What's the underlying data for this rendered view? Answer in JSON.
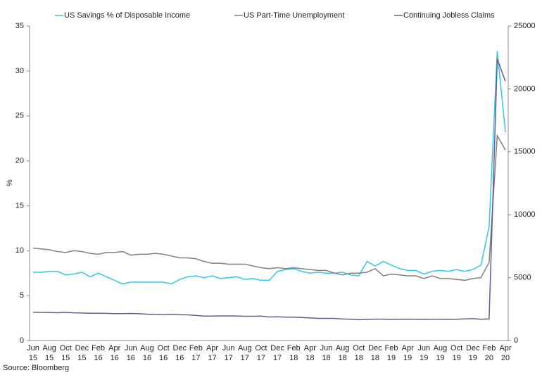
{
  "chart_data": {
    "type": "line",
    "source": "Source: Bloomberg",
    "ylabel": "%",
    "ylim": [
      0,
      35
    ],
    "yticks": [
      0,
      5,
      10,
      15,
      20,
      25,
      30,
      35
    ],
    "y2lim": [
      0,
      25000
    ],
    "y2ticks": [
      0,
      5000,
      10000,
      15000,
      20000,
      25000
    ],
    "categories": [
      "Jun 15",
      null,
      "Aug 15",
      null,
      "Oct 15",
      null,
      "Dec 15",
      null,
      "Feb 16",
      null,
      "Apr 16",
      null,
      "Jun 16",
      null,
      "Aug 16",
      null,
      "Oct 16",
      null,
      "Dec 16",
      null,
      "Feb 17",
      null,
      "Apr 17",
      null,
      "Jun 17",
      null,
      "Aug 17",
      null,
      "Oct 17",
      null,
      "Dec 17",
      null,
      "Feb 18",
      null,
      "Apr 18",
      null,
      "Jun 18",
      null,
      "Aug 18",
      null,
      "Oct 18",
      null,
      "Dec 18",
      null,
      "Feb 19",
      null,
      "Apr 19",
      null,
      "Jun 19",
      null,
      "Aug 19",
      null,
      "Oct 19",
      null,
      "Dec 19",
      null,
      "Feb 20",
      null,
      "Apr 20"
    ],
    "series": [
      {
        "name": "US Savings % of Disposable Income",
        "color": "#33c9e6",
        "values": [
          7.6,
          7.6,
          7.7,
          7.7,
          7.3,
          7.4,
          7.6,
          7.1,
          7.5,
          7.1,
          6.7,
          6.3,
          6.5,
          6.5,
          6.5,
          6.5,
          6.5,
          6.3,
          6.8,
          7.1,
          7.2,
          7.0,
          7.2,
          6.9,
          7.0,
          7.1,
          6.8,
          6.9,
          6.7,
          6.7,
          7.7,
          7.9,
          8.0,
          7.7,
          7.5,
          7.6,
          7.5,
          7.5,
          7.6,
          7.3,
          7.2,
          8.8,
          8.3,
          8.8,
          8.4,
          8.0,
          7.8,
          7.8,
          7.4,
          7.7,
          7.8,
          7.7,
          7.9,
          7.7,
          7.9,
          8.4,
          12.7,
          32.2,
          23.2
        ]
      },
      {
        "name": "US Part-Time Unemployment",
        "color": "#808080",
        "values": [
          10.3,
          10.2,
          10.1,
          9.9,
          9.8,
          10.0,
          9.9,
          9.7,
          9.6,
          9.8,
          9.8,
          9.9,
          9.5,
          9.6,
          9.6,
          9.7,
          9.6,
          9.4,
          9.2,
          9.2,
          9.1,
          8.8,
          8.6,
          8.6,
          8.5,
          8.5,
          8.5,
          8.3,
          8.1,
          8.0,
          8.1,
          8.0,
          8.1,
          8.0,
          7.9,
          7.8,
          7.8,
          7.5,
          7.3,
          7.5,
          7.5,
          7.6,
          8.0,
          7.2,
          7.4,
          7.3,
          7.2,
          7.2,
          6.9,
          7.2,
          6.9,
          6.9,
          6.8,
          6.7,
          6.9,
          7.0,
          8.7,
          22.8,
          21.2
        ]
      },
      {
        "name": "Continuing Jobless Claims",
        "color": "#6b5b95",
        "axis": "y2",
        "values": [
          2250,
          2240,
          2230,
          2210,
          2240,
          2200,
          2190,
          2170,
          2170,
          2160,
          2140,
          2140,
          2150,
          2130,
          2090,
          2060,
          2050,
          2070,
          2050,
          2040,
          1990,
          1940,
          1940,
          1960,
          1960,
          1950,
          1930,
          1930,
          1940,
          1870,
          1890,
          1860,
          1860,
          1830,
          1800,
          1760,
          1760,
          1760,
          1710,
          1690,
          1660,
          1680,
          1700,
          1700,
          1680,
          1690,
          1700,
          1690,
          1680,
          1690,
          1690,
          1680,
          1690,
          1720,
          1740,
          1690,
          1710,
          22400,
          20600
        ]
      }
    ]
  }
}
